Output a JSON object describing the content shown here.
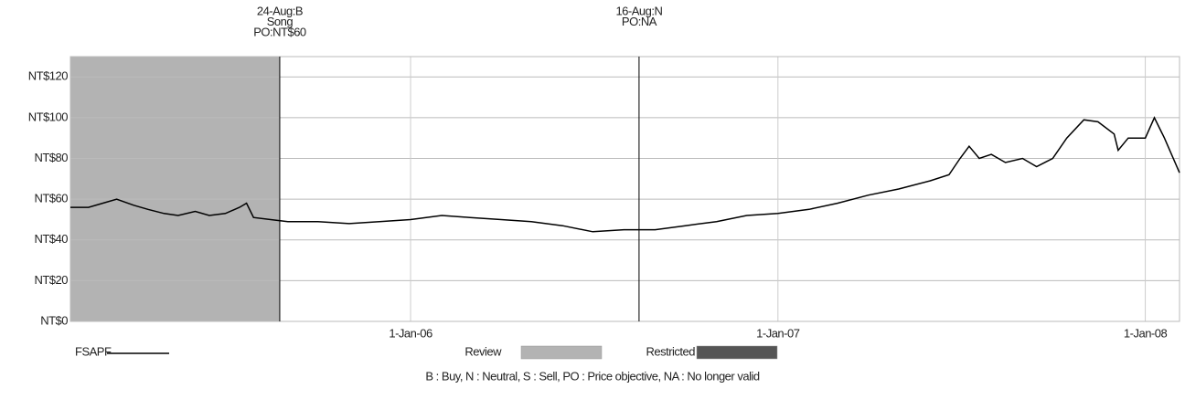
{
  "chart_data": {
    "type": "line",
    "x": [
      "2005-01-28",
      "2005-02-15",
      "2005-03-01",
      "2005-03-15",
      "2005-04-01",
      "2005-04-15",
      "2005-05-01",
      "2005-05-15",
      "2005-06-01",
      "2005-06-15",
      "2005-07-01",
      "2005-07-15",
      "2005-07-22",
      "2005-07-29",
      "2005-08-15",
      "2005-09-01",
      "2005-10-01",
      "2005-11-01",
      "2005-12-01",
      "2006-01-01",
      "2006-02-01",
      "2006-03-01",
      "2006-04-01",
      "2006-05-01",
      "2006-06-01",
      "2006-07-01",
      "2006-08-01",
      "2006-09-01",
      "2006-10-01",
      "2006-11-01",
      "2006-12-01",
      "2007-01-01",
      "2007-02-01",
      "2007-03-01",
      "2007-04-01",
      "2007-05-01",
      "2007-06-01",
      "2007-06-20",
      "2007-07-01",
      "2007-07-10",
      "2007-07-20",
      "2007-08-01",
      "2007-08-15",
      "2007-09-01",
      "2007-09-15",
      "2007-10-01",
      "2007-10-15",
      "2007-11-01",
      "2007-11-15",
      "2007-12-01",
      "2007-12-05",
      "2007-12-15",
      "2008-01-01",
      "2008-01-10",
      "2008-01-20",
      "2008-02-04"
    ],
    "series": [
      {
        "name": "FSAPF",
        "color": "#000000",
        "values": [
          56,
          56,
          58,
          60,
          57,
          55,
          53,
          52,
          54,
          52,
          53,
          56,
          58,
          51,
          50,
          49,
          49,
          48,
          49,
          50,
          52,
          51,
          50,
          49,
          47,
          44,
          45,
          45,
          47,
          49,
          52,
          53,
          55,
          58,
          62,
          65,
          69,
          72,
          80,
          86,
          80,
          82,
          78,
          80,
          76,
          80,
          90,
          99,
          98,
          92,
          84,
          90,
          90,
          100,
          90,
          73
        ]
      }
    ],
    "xlim": [
      "2005-01-28",
      "2008-02-04"
    ],
    "xticks": [
      {
        "value": "2006-01-01",
        "label": "1-Jan-06"
      },
      {
        "value": "2007-01-01",
        "label": "1-Jan-07"
      },
      {
        "value": "2008-01-01",
        "label": "1-Jan-08"
      }
    ],
    "ylim": [
      0,
      130
    ],
    "yticks": [
      {
        "value": 0,
        "label": "NT$0"
      },
      {
        "value": 20,
        "label": "NT$20"
      },
      {
        "value": 40,
        "label": "NT$40"
      },
      {
        "value": 60,
        "label": "NT$60"
      },
      {
        "value": 80,
        "label": "NT$80"
      },
      {
        "value": 100,
        "label": "NT$100"
      },
      {
        "value": 120,
        "label": "NT$120"
      }
    ],
    "grid": true,
    "annotations": [
      {
        "x": "2005-08-24",
        "lines": [
          "24-Aug:B",
          "Song",
          "PO:NT$60"
        ]
      },
      {
        "x": "2006-08-16",
        "lines": [
          "16-Aug:N",
          "PO:NA"
        ]
      }
    ],
    "review_periods": [
      [
        "2005-01-28",
        "2005-08-24"
      ]
    ],
    "legend_items": [
      {
        "name": "Review",
        "color": "#b3b3b3"
      },
      {
        "name": "Restricted",
        "color": "#555555"
      }
    ],
    "footnote": "B : Buy,  N : Neutral,  S : Sell,  PO : Price objective,  NA : No longer valid"
  }
}
